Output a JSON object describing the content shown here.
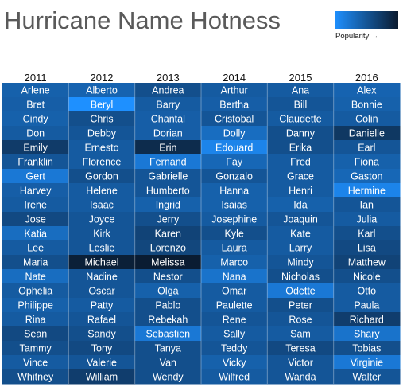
{
  "chart_data": {
    "type": "heatmap",
    "title": "Hurricane Name Hotness",
    "legend": {
      "label": "Popularity →",
      "colors": [
        "#1e90ff",
        "#0a1a2e"
      ],
      "placement": "top-right"
    },
    "columns": [
      "2011",
      "2012",
      "2013",
      "2014",
      "2015",
      "2016"
    ],
    "names": [
      [
        "Arlene",
        "Alberto",
        "Andrea",
        "Arthur",
        "Ana",
        "Alex"
      ],
      [
        "Bret",
        "Beryl",
        "Barry",
        "Bertha",
        "Bill",
        "Bonnie"
      ],
      [
        "Cindy",
        "Chris",
        "Chantal",
        "Cristobal",
        "Claudette",
        "Colin"
      ],
      [
        "Don",
        "Debby",
        "Dorian",
        "Dolly",
        "Danny",
        "Danielle"
      ],
      [
        "Emily",
        "Ernesto",
        "Erin",
        "Edouard",
        "Erika",
        "Earl"
      ],
      [
        "Franklin",
        "Florence",
        "Fernand",
        "Fay",
        "Fred",
        "Fiona"
      ],
      [
        "Gert",
        "Gordon",
        "Gabrielle",
        "Gonzalo",
        "Grace",
        "Gaston"
      ],
      [
        "Harvey",
        "Helene",
        "Humberto",
        "Hanna",
        "Henri",
        "Hermine"
      ],
      [
        "Irene",
        "Isaac",
        "Ingrid",
        "Isaias",
        "Ida",
        "Ian"
      ],
      [
        "Jose",
        "Joyce",
        "Jerry",
        "Josephine",
        "Joaquin",
        "Julia"
      ],
      [
        "Katia",
        "Kirk",
        "Karen",
        "Kyle",
        "Kate",
        "Karl"
      ],
      [
        "Lee",
        "Leslie",
        "Lorenzo",
        "Laura",
        "Larry",
        "Lisa"
      ],
      [
        "Maria",
        "Michael",
        "Melissa",
        "Marco",
        "Mindy",
        "Matthew"
      ],
      [
        "Nate",
        "Nadine",
        "Nestor",
        "Nana",
        "Nicholas",
        "Nicole"
      ],
      [
        "Ophelia",
        "Oscar",
        "Olga",
        "Omar",
        "Odette",
        "Otto"
      ],
      [
        "Philippe",
        "Patty",
        "Pablo",
        "Paulette",
        "Peter",
        "Paula"
      ],
      [
        "Rina",
        "Rafael",
        "Rebekah",
        "Rene",
        "Rose",
        "Richard"
      ],
      [
        "Sean",
        "Sandy",
        "Sebastien",
        "Sally",
        "Sam",
        "Shary"
      ],
      [
        "Tammy",
        "Tony",
        "Tanya",
        "Teddy",
        "Teresa",
        "Tobias"
      ],
      [
        "Vince",
        "Valerie",
        "Van",
        "Vicky",
        "Victor",
        "Virginie"
      ],
      [
        "Whitney",
        "William",
        "Wendy",
        "Wilfred",
        "Wanda",
        "Walter"
      ]
    ],
    "values": [
      [
        0.4,
        0.38,
        0.55,
        0.45,
        0.45,
        0.38
      ],
      [
        0.42,
        0.0,
        0.45,
        0.42,
        0.5,
        0.4
      ],
      [
        0.4,
        0.55,
        0.42,
        0.5,
        0.45,
        0.45
      ],
      [
        0.45,
        0.5,
        0.42,
        0.3,
        0.55,
        0.75
      ],
      [
        0.72,
        0.45,
        0.85,
        0.1,
        0.55,
        0.5
      ],
      [
        0.5,
        0.45,
        0.2,
        0.35,
        0.45,
        0.4
      ],
      [
        0.2,
        0.55,
        0.5,
        0.5,
        0.45,
        0.35
      ],
      [
        0.42,
        0.45,
        0.5,
        0.4,
        0.45,
        0.1
      ],
      [
        0.45,
        0.45,
        0.4,
        0.4,
        0.4,
        0.5
      ],
      [
        0.6,
        0.5,
        0.55,
        0.45,
        0.5,
        0.45
      ],
      [
        0.3,
        0.5,
        0.65,
        0.55,
        0.45,
        0.55
      ],
      [
        0.45,
        0.5,
        0.62,
        0.45,
        0.45,
        0.6
      ],
      [
        0.55,
        0.95,
        0.98,
        0.4,
        0.5,
        0.65
      ],
      [
        0.3,
        0.5,
        0.55,
        0.25,
        0.55,
        0.55
      ],
      [
        0.45,
        0.5,
        0.4,
        0.45,
        0.2,
        0.45
      ],
      [
        0.4,
        0.45,
        0.55,
        0.45,
        0.55,
        0.45
      ],
      [
        0.45,
        0.5,
        0.55,
        0.5,
        0.5,
        0.7
      ],
      [
        0.6,
        0.55,
        0.2,
        0.45,
        0.45,
        0.25
      ],
      [
        0.55,
        0.6,
        0.55,
        0.5,
        0.6,
        0.55
      ],
      [
        0.45,
        0.5,
        0.55,
        0.4,
        0.5,
        0.2
      ],
      [
        0.55,
        0.7,
        0.55,
        0.45,
        0.5,
        0.5
      ]
    ]
  }
}
